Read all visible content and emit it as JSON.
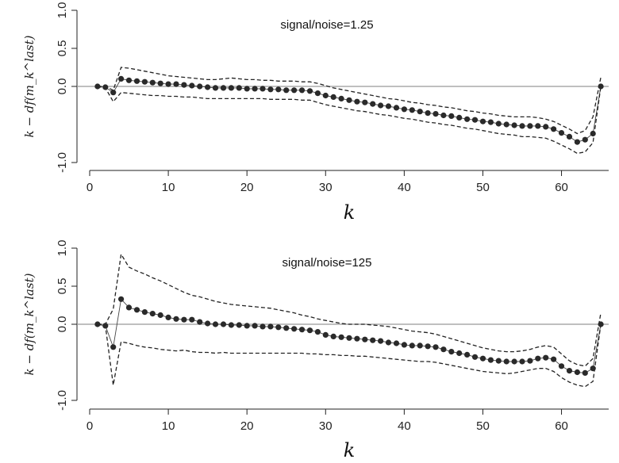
{
  "chart_data": [
    {
      "type": "line",
      "annotation": "signal/noise=1.25",
      "xlabel": "k",
      "ylabel": "k − df(m_k^last)",
      "xlim": [
        0,
        66
      ],
      "ylim": [
        -1.05,
        1.05
      ],
      "xticks": [
        0,
        10,
        20,
        30,
        40,
        50,
        60
      ],
      "yticks": [
        -1.0,
        0.0,
        0.5,
        1.0
      ],
      "ytick_labels": [
        "-1.0",
        "0.0",
        "0.5",
        "1.0"
      ],
      "reference_line": 0,
      "x": [
        1,
        2,
        3,
        4,
        5,
        6,
        7,
        8,
        9,
        10,
        11,
        12,
        13,
        14,
        15,
        16,
        17,
        18,
        19,
        20,
        21,
        22,
        23,
        24,
        25,
        26,
        27,
        28,
        29,
        30,
        31,
        32,
        33,
        34,
        35,
        36,
        37,
        38,
        39,
        40,
        41,
        42,
        43,
        44,
        45,
        46,
        47,
        48,
        49,
        50,
        51,
        52,
        53,
        54,
        55,
        56,
        57,
        58,
        59,
        60,
        61,
        62,
        63,
        64,
        65
      ],
      "series": [
        {
          "style": "points",
          "values": [
            0.0,
            -0.01,
            -0.08,
            0.1,
            0.08,
            0.07,
            0.06,
            0.05,
            0.04,
            0.03,
            0.03,
            0.02,
            0.01,
            0.0,
            -0.01,
            -0.02,
            -0.02,
            -0.02,
            -0.02,
            -0.03,
            -0.03,
            -0.03,
            -0.04,
            -0.04,
            -0.05,
            -0.05,
            -0.05,
            -0.06,
            -0.09,
            -0.12,
            -0.14,
            -0.16,
            -0.18,
            -0.2,
            -0.21,
            -0.23,
            -0.25,
            -0.26,
            -0.28,
            -0.3,
            -0.31,
            -0.33,
            -0.35,
            -0.36,
            -0.38,
            -0.39,
            -0.41,
            -0.43,
            -0.44,
            -0.46,
            -0.47,
            -0.49,
            -0.5,
            -0.51,
            -0.52,
            -0.52,
            -0.52,
            -0.53,
            -0.56,
            -0.61,
            -0.66,
            -0.73,
            -0.7,
            -0.62,
            0.0
          ]
        },
        {
          "style": "dashed",
          "values": [
            0.0,
            0.0,
            -0.05,
            0.25,
            0.24,
            0.22,
            0.2,
            0.18,
            0.16,
            0.14,
            0.13,
            0.12,
            0.11,
            0.1,
            0.09,
            0.09,
            0.1,
            0.11,
            0.1,
            0.09,
            0.09,
            0.08,
            0.08,
            0.07,
            0.07,
            0.07,
            0.06,
            0.06,
            0.04,
            0.01,
            -0.02,
            -0.04,
            -0.06,
            -0.08,
            -0.1,
            -0.12,
            -0.14,
            -0.16,
            -0.17,
            -0.19,
            -0.21,
            -0.22,
            -0.24,
            -0.25,
            -0.27,
            -0.28,
            -0.3,
            -0.32,
            -0.33,
            -0.35,
            -0.36,
            -0.38,
            -0.39,
            -0.4,
            -0.4,
            -0.4,
            -0.41,
            -0.43,
            -0.46,
            -0.51,
            -0.56,
            -0.62,
            -0.58,
            -0.4,
            0.12
          ]
        },
        {
          "style": "dashed",
          "values": [
            0.0,
            -0.02,
            -0.2,
            -0.08,
            -0.09,
            -0.1,
            -0.11,
            -0.12,
            -0.12,
            -0.13,
            -0.13,
            -0.14,
            -0.14,
            -0.15,
            -0.16,
            -0.16,
            -0.16,
            -0.16,
            -0.16,
            -0.16,
            -0.16,
            -0.16,
            -0.17,
            -0.17,
            -0.17,
            -0.17,
            -0.18,
            -0.18,
            -0.21,
            -0.24,
            -0.26,
            -0.28,
            -0.3,
            -0.32,
            -0.33,
            -0.35,
            -0.37,
            -0.38,
            -0.4,
            -0.42,
            -0.43,
            -0.45,
            -0.47,
            -0.48,
            -0.5,
            -0.51,
            -0.53,
            -0.55,
            -0.56,
            -0.58,
            -0.6,
            -0.62,
            -0.63,
            -0.64,
            -0.66,
            -0.66,
            -0.67,
            -0.68,
            -0.72,
            -0.77,
            -0.82,
            -0.88,
            -0.86,
            -0.74,
            0.0
          ]
        }
      ]
    },
    {
      "type": "line",
      "annotation": "signal/noise=125",
      "xlabel": "k",
      "ylabel": "k − df(m_k^last)",
      "xlim": [
        0,
        66
      ],
      "ylim": [
        -1.05,
        1.05
      ],
      "xticks": [
        0,
        10,
        20,
        30,
        40,
        50,
        60
      ],
      "yticks": [
        -1.0,
        0.0,
        0.5,
        1.0
      ],
      "ytick_labels": [
        "-1.0",
        "0.0",
        "0.5",
        "1.0"
      ],
      "reference_line": 0,
      "x": [
        1,
        2,
        3,
        4,
        5,
        6,
        7,
        8,
        9,
        10,
        11,
        12,
        13,
        14,
        15,
        16,
        17,
        18,
        19,
        20,
        21,
        22,
        23,
        24,
        25,
        26,
        27,
        28,
        29,
        30,
        31,
        32,
        33,
        34,
        35,
        36,
        37,
        38,
        39,
        40,
        41,
        42,
        43,
        44,
        45,
        46,
        47,
        48,
        49,
        50,
        51,
        52,
        53,
        54,
        55,
        56,
        57,
        58,
        59,
        60,
        61,
        62,
        63,
        64,
        65
      ],
      "series": [
        {
          "style": "points",
          "values": [
            0.0,
            -0.02,
            -0.3,
            0.33,
            0.22,
            0.19,
            0.16,
            0.14,
            0.12,
            0.09,
            0.07,
            0.06,
            0.06,
            0.03,
            0.01,
            0.0,
            0.0,
            -0.01,
            -0.01,
            -0.02,
            -0.02,
            -0.03,
            -0.03,
            -0.04,
            -0.05,
            -0.06,
            -0.07,
            -0.08,
            -0.1,
            -0.14,
            -0.16,
            -0.17,
            -0.18,
            -0.19,
            -0.2,
            -0.21,
            -0.22,
            -0.24,
            -0.25,
            -0.27,
            -0.28,
            -0.28,
            -0.29,
            -0.3,
            -0.33,
            -0.36,
            -0.38,
            -0.4,
            -0.43,
            -0.45,
            -0.47,
            -0.48,
            -0.49,
            -0.49,
            -0.49,
            -0.48,
            -0.45,
            -0.44,
            -0.46,
            -0.55,
            -0.61,
            -0.63,
            -0.64,
            -0.58,
            0.0
          ]
        },
        {
          "style": "dashed",
          "values": [
            0.0,
            0.0,
            0.2,
            0.92,
            0.75,
            0.7,
            0.66,
            0.61,
            0.57,
            0.52,
            0.47,
            0.42,
            0.38,
            0.36,
            0.33,
            0.3,
            0.28,
            0.26,
            0.25,
            0.24,
            0.23,
            0.22,
            0.21,
            0.19,
            0.17,
            0.15,
            0.12,
            0.1,
            0.07,
            0.05,
            0.03,
            0.01,
            0.0,
            0.0,
            0.0,
            -0.01,
            -0.02,
            -0.03,
            -0.05,
            -0.07,
            -0.09,
            -0.1,
            -0.11,
            -0.13,
            -0.16,
            -0.19,
            -0.22,
            -0.25,
            -0.28,
            -0.31,
            -0.33,
            -0.35,
            -0.36,
            -0.36,
            -0.35,
            -0.33,
            -0.3,
            -0.28,
            -0.3,
            -0.39,
            -0.48,
            -0.53,
            -0.55,
            -0.45,
            0.15
          ]
        },
        {
          "style": "dashed",
          "values": [
            0.0,
            -0.02,
            -0.8,
            -0.23,
            -0.25,
            -0.28,
            -0.3,
            -0.31,
            -0.33,
            -0.34,
            -0.35,
            -0.34,
            -0.36,
            -0.37,
            -0.37,
            -0.38,
            -0.37,
            -0.38,
            -0.38,
            -0.38,
            -0.38,
            -0.38,
            -0.38,
            -0.38,
            -0.38,
            -0.38,
            -0.38,
            -0.39,
            -0.39,
            -0.4,
            -0.4,
            -0.41,
            -0.41,
            -0.42,
            -0.42,
            -0.43,
            -0.44,
            -0.45,
            -0.46,
            -0.47,
            -0.48,
            -0.49,
            -0.49,
            -0.5,
            -0.52,
            -0.54,
            -0.56,
            -0.58,
            -0.6,
            -0.62,
            -0.63,
            -0.64,
            -0.65,
            -0.64,
            -0.62,
            -0.6,
            -0.58,
            -0.58,
            -0.62,
            -0.7,
            -0.76,
            -0.8,
            -0.82,
            -0.75,
            0.0
          ]
        }
      ]
    }
  ]
}
